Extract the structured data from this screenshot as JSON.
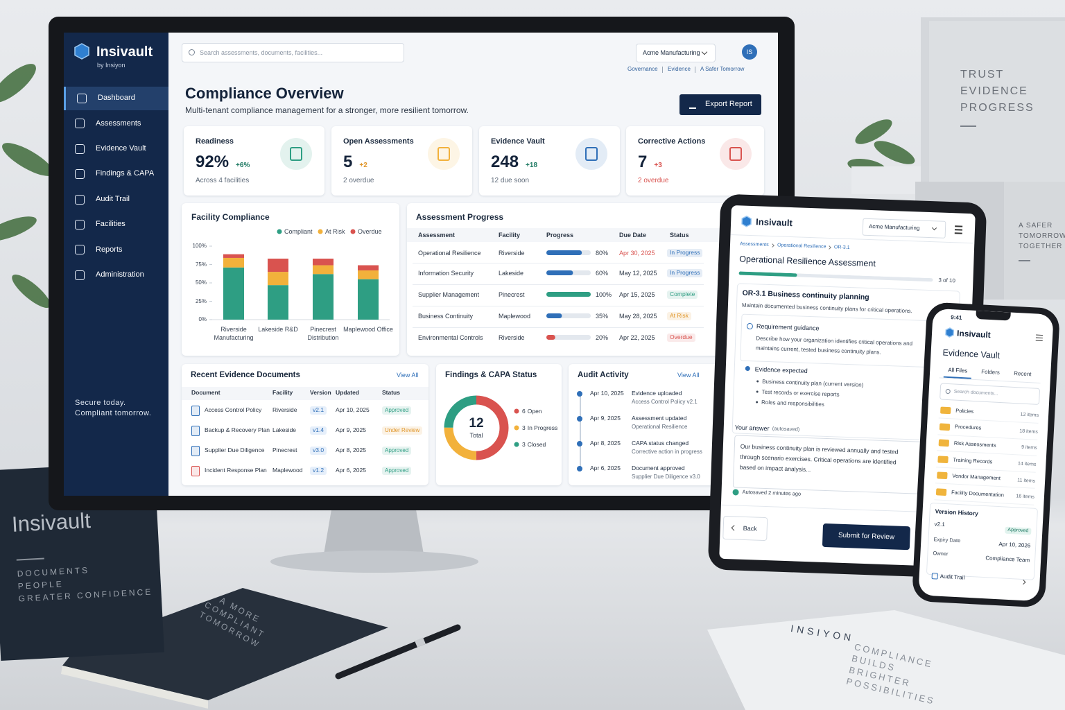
{
  "scene": {
    "box_tagline": [
      "TRUST",
      "EVIDENCE",
      "PROGRESS"
    ],
    "box2_tagline": [
      "A SAFER",
      "TOMORROW",
      "TOGETHER"
    ],
    "book": {
      "title": "Insivault",
      "lines": [
        "DOCUMENTS",
        "PEOPLE",
        "GREATER CONFIDENCE"
      ]
    },
    "notebook": [
      "A MORE",
      "COMPLIANT",
      "TOMORROW"
    ],
    "booklet": {
      "brand": "INSIYON",
      "lines": [
        "COMPLIANCE",
        "BUILDS",
        "BRIGHTER",
        "POSSIBILITIES"
      ]
    }
  },
  "desktop": {
    "brand": "Insivault",
    "brand_sub": "by Insiyon",
    "nav": [
      "Dashboard",
      "Assessments",
      "Evidence Vault",
      "Findings & CAPA",
      "Audit Trail",
      "Facilities",
      "Reports",
      "Administration"
    ],
    "active_nav": 0,
    "sidebar_footer": [
      "Secure today.",
      "Compliant tomorrow."
    ],
    "search": "Search assessments, documents, facilities...",
    "tenant": "Acme Manufacturing",
    "avatar": "IS",
    "links": [
      "Governance",
      "Evidence",
      "A Safer Tomorrow"
    ],
    "title": "Compliance Overview",
    "subtitle": "Multi-tenant compliance management for a stronger, more resilient tomorrow.",
    "export": "Export Report",
    "kpis": [
      {
        "title": "Readiness",
        "value": "92%",
        "delta": "+6%",
        "note": "Across 4 facilities",
        "color": "#2e9e83",
        "delta_color": "#1f7a63",
        "note_color": "#5f6b7a"
      },
      {
        "title": "Open Assessments",
        "value": "5",
        "delta": "+2",
        "note": "2 overdue",
        "color": "#f2b13b",
        "delta_color": "#e0962a",
        "note_color": "#5f6b7a"
      },
      {
        "title": "Evidence Vault",
        "value": "248",
        "delta": "+18",
        "note": "12 due soon",
        "color": "#2f6fb8",
        "delta_color": "#1f7a63",
        "note_color": "#5f6b7a"
      },
      {
        "title": "Corrective Actions",
        "value": "7",
        "delta": "+3",
        "note": "2 overdue",
        "color": "#d9534f",
        "delta_color": "#d9534f",
        "note_color": "#d9534f"
      }
    ],
    "assessments": {
      "title": "Assessment Progress",
      "columns": [
        "Assessment",
        "Facility",
        "Progress",
        "Due Date",
        "Status"
      ],
      "rows": [
        {
          "assessment": "Operational Resilience",
          "facility": "Riverside",
          "progress": 80,
          "progress_label": "80%",
          "due": "Apr 30, 2025",
          "due_color": "#d9534f",
          "status": "In Progress",
          "color": "#2f6fb8",
          "status_color": "#2f6fb8"
        },
        {
          "assessment": "Information Security",
          "facility": "Lakeside",
          "progress": 60,
          "progress_label": "60%",
          "due": "May 12, 2025",
          "due_color": "#2b3645",
          "status": "In Progress",
          "color": "#2f6fb8",
          "status_color": "#2f6fb8"
        },
        {
          "assessment": "Supplier Management",
          "facility": "Pinecrest",
          "progress": 100,
          "progress_label": "100%",
          "due": "Apr 15, 2025",
          "due_color": "#2b3645",
          "status": "Complete",
          "color": "#2e9e83",
          "status_color": "#2e9e83"
        },
        {
          "assessment": "Business Continuity",
          "facility": "Maplewood",
          "progress": 35,
          "progress_label": "35%",
          "due": "May 28, 2025",
          "due_color": "#2b3645",
          "status": "At Risk",
          "color": "#2f6fb8",
          "status_color": "#e0962a"
        },
        {
          "assessment": "Environmental Controls",
          "facility": "Riverside",
          "progress": 20,
          "progress_label": "20%",
          "due": "Apr 22, 2025",
          "due_color": "#2b3645",
          "status": "Overdue",
          "color": "#d9534f",
          "status_color": "#d9534f"
        }
      ]
    },
    "evidence": {
      "title": "Recent Evidence Documents",
      "action": "View All",
      "columns": [
        "Document",
        "Facility",
        "Version",
        "Updated",
        "Status"
      ],
      "rows": [
        {
          "document": "Access Control Policy",
          "facility": "Riverside",
          "version": "v2.1",
          "updated": "Apr 10, 2025",
          "status": "Approved",
          "status_color": "#2e9e83",
          "icon_color": "#2f6fb8"
        },
        {
          "document": "Backup & Recovery Plan",
          "facility": "Lakeside",
          "version": "v1.4",
          "updated": "Apr 9, 2025",
          "status": "Under Review",
          "status_color": "#e0962a",
          "icon_color": "#2f6fb8"
        },
        {
          "document": "Supplier Due Diligence",
          "facility": "Pinecrest",
          "version": "v3.0",
          "updated": "Apr 8, 2025",
          "status": "Approved",
          "status_color": "#2e9e83",
          "icon_color": "#2f6fb8"
        },
        {
          "document": "Incident Response Plan",
          "facility": "Maplewood",
          "version": "v1.2",
          "updated": "Apr 6, 2025",
          "status": "Approved",
          "status_color": "#2e9e83",
          "icon_color": "#d9534f"
        }
      ]
    },
    "audit": {
      "title": "Audit Activity",
      "action": "View All",
      "items": [
        {
          "date": "Apr 10, 2025",
          "event": "Evidence uploaded",
          "detail": "Access Control Policy v2.1"
        },
        {
          "date": "Apr 9, 2025",
          "event": "Assessment updated",
          "detail": "Operational Resilience"
        },
        {
          "date": "Apr 8, 2025",
          "event": "CAPA status changed",
          "detail": "Corrective action in progress"
        },
        {
          "date": "Apr 6, 2025",
          "event": "Document approved",
          "detail": "Supplier Due Diligence v3.0"
        }
      ]
    }
  },
  "chart_data": [
    {
      "type": "bar",
      "stacked": true,
      "title": "Facility Compliance",
      "categories": [
        "Riverside Manufacturing",
        "Lakeside R&D",
        "Pinecrest Distribution",
        "Maplewood Office"
      ],
      "series": [
        {
          "name": "Compliant",
          "color": "#2e9e83",
          "values": [
            71,
            47,
            62,
            55
          ]
        },
        {
          "name": "At Risk",
          "color": "#f2b13b",
          "values": [
            13,
            18,
            12,
            12
          ]
        },
        {
          "name": "Overdue",
          "color": "#d9534f",
          "values": [
            5,
            18,
            9,
            7
          ]
        }
      ],
      "ylim": [
        0,
        100
      ],
      "yticks": [
        {
          "value": 0,
          "label": "0%"
        },
        {
          "value": 25,
          "label": "25%"
        },
        {
          "value": 50,
          "label": "50%"
        },
        {
          "value": 75,
          "label": "75%"
        },
        {
          "value": 100,
          "label": "100%"
        }
      ],
      "grid": false,
      "legend": "top-right"
    },
    {
      "type": "pie",
      "donut": true,
      "title": "Findings & CAPA Status",
      "categories": [
        "Open",
        "In Progress",
        "Closed"
      ],
      "values": [
        6,
        3,
        3
      ],
      "colors": [
        "#d9534f",
        "#f2b13b",
        "#2e9e83"
      ],
      "center_value": 12,
      "center_label": "Total"
    }
  ],
  "tablet": {
    "brand": "Insivault",
    "tenant": "Acme Manufacturing",
    "breadcrumb": [
      "Assessments",
      "Operational Resilience",
      "OR-3.1"
    ],
    "title": "Operational Resilience Assessment",
    "step": 3,
    "steps": 10,
    "step_label": "3 of 10",
    "section": "OR-3.1 Business continuity planning",
    "section_desc": "Maintain documented business continuity plans for critical operations.",
    "guidance_title": "Requirement guidance",
    "guidance_text": "Describe how your organization identifies critical operations and maintains current, tested business continuity plans.",
    "evidence_title": "Evidence expected",
    "evidence_items": [
      "Business continuity plan (current version)",
      "Test records or exercise reports",
      "Roles and responsibilities"
    ],
    "answer_label": "Your answer",
    "answer_note": "(autosaved)",
    "answer_text": "Our business continuity plan is reviewed annually and tested through scenario exercises. Critical operations are identified based on impact analysis...",
    "autosave": "Autosaved 2 minutes ago",
    "back": "Back",
    "submit": "Submit for Review"
  },
  "phone": {
    "time": "9:41",
    "brand": "Insivault",
    "title": "Evidence Vault",
    "tabs": [
      "All Files",
      "Folders",
      "Recent"
    ],
    "active_tab": 0,
    "search": "Search documents...",
    "folders": [
      {
        "name": "Policies",
        "count": "12 items"
      },
      {
        "name": "Procedures",
        "count": "18 items"
      },
      {
        "name": "Risk Assessments",
        "count": "9 items"
      },
      {
        "name": "Training Records",
        "count": "14 items"
      },
      {
        "name": "Vendor Management",
        "count": "11 items"
      },
      {
        "name": "Facility Documentation",
        "count": "16 items"
      }
    ],
    "version_title": "Version History",
    "version": "v2.1",
    "version_status": "Approved",
    "expiry_label": "Expiry Date",
    "expiry": "Apr 10, 2026",
    "owner_label": "Owner",
    "owner": "Compliance Team",
    "audit_link": "Audit Trail"
  }
}
